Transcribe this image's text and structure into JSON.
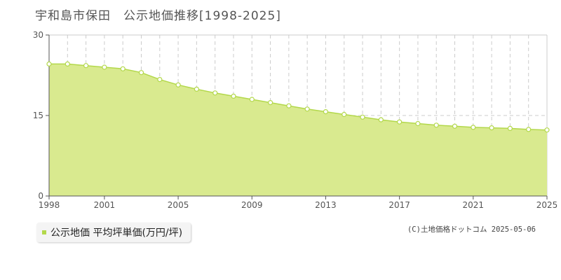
{
  "chart_data": {
    "type": "area",
    "title": "宇和島市保田　公示地価推移[1998-2025]",
    "xlabel": "",
    "ylabel": "",
    "ylim": [
      0,
      30
    ],
    "yticks": [
      0,
      15,
      30
    ],
    "xlim": [
      1998,
      2025
    ],
    "xticks": [
      1998,
      2001,
      2005,
      2009,
      2013,
      2017,
      2021,
      2025
    ],
    "x": [
      1998,
      1999,
      2000,
      2001,
      2002,
      2003,
      2004,
      2005,
      2006,
      2007,
      2008,
      2009,
      2010,
      2011,
      2012,
      2013,
      2014,
      2015,
      2016,
      2017,
      2018,
      2019,
      2020,
      2021,
      2022,
      2023,
      2024,
      2025
    ],
    "series": [
      {
        "name": "公示地価 平均坪単価(万円/坪)",
        "values": [
          24.6,
          24.6,
          24.3,
          24.0,
          23.7,
          23.0,
          21.7,
          20.7,
          19.9,
          19.2,
          18.6,
          18.0,
          17.4,
          16.8,
          16.2,
          15.7,
          15.2,
          14.7,
          14.2,
          13.8,
          13.5,
          13.2,
          13.0,
          12.8,
          12.7,
          12.6,
          12.4,
          12.3
        ]
      }
    ],
    "grid": true,
    "legend": "bottom-left",
    "fill_color": "#d9ea8f",
    "line_color": "#b3d84b",
    "marker_color": "#ffffff"
  },
  "legend_label": "公示地価 平均坪単価(万円/坪)",
  "credit": "(C)土地価格ドットコム 2025-05-06"
}
